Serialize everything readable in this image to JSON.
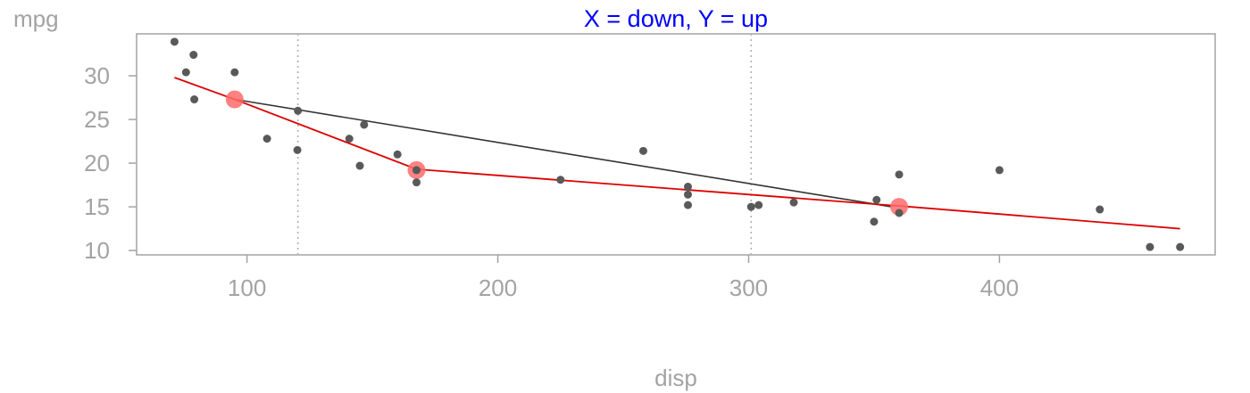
{
  "chart_data": {
    "type": "scatter",
    "title": "X = down, Y = up",
    "xlabel": "disp",
    "ylabel": "mpg",
    "xlim": [
      56,
      486
    ],
    "ylim": [
      9.5,
      34.8
    ],
    "xticks": [
      100,
      200,
      300,
      400
    ],
    "yticks": [
      10,
      15,
      20,
      25,
      30
    ],
    "grid": false,
    "vlines": [
      120.3,
      301
    ],
    "colors": {
      "points": "#595959",
      "fit_line": "#dd0000",
      "connector_line": "#333333",
      "highlight": "#ff6b6b",
      "axis": "#a3a3a3",
      "title": "#0000ff",
      "vline": "#b0b0b0"
    },
    "points": [
      {
        "x": 71.1,
        "y": 33.9
      },
      {
        "x": 75.7,
        "y": 30.4
      },
      {
        "x": 78.7,
        "y": 32.4
      },
      {
        "x": 79.0,
        "y": 27.3
      },
      {
        "x": 95.1,
        "y": 30.4
      },
      {
        "x": 108.0,
        "y": 22.8
      },
      {
        "x": 120.1,
        "y": 21.5
      },
      {
        "x": 120.3,
        "y": 26.0
      },
      {
        "x": 140.8,
        "y": 22.8
      },
      {
        "x": 145.0,
        "y": 19.7
      },
      {
        "x": 146.7,
        "y": 24.4
      },
      {
        "x": 160.0,
        "y": 21.0
      },
      {
        "x": 167.6,
        "y": 19.2
      },
      {
        "x": 167.6,
        "y": 17.8
      },
      {
        "x": 225.0,
        "y": 18.1
      },
      {
        "x": 258.0,
        "y": 21.4
      },
      {
        "x": 275.8,
        "y": 16.4
      },
      {
        "x": 275.8,
        "y": 17.3
      },
      {
        "x": 275.8,
        "y": 15.2
      },
      {
        "x": 301.0,
        "y": 15.0
      },
      {
        "x": 304.0,
        "y": 15.2
      },
      {
        "x": 318.0,
        "y": 15.5
      },
      {
        "x": 350.0,
        "y": 13.3
      },
      {
        "x": 351.0,
        "y": 15.8
      },
      {
        "x": 360.0,
        "y": 14.3
      },
      {
        "x": 360.0,
        "y": 18.7
      },
      {
        "x": 400.0,
        "y": 19.2
      },
      {
        "x": 440.0,
        "y": 14.7
      },
      {
        "x": 460.0,
        "y": 10.4
      },
      {
        "x": 472.0,
        "y": 10.4
      }
    ],
    "fit_line": [
      {
        "x": 71.1,
        "y": 29.8
      },
      {
        "x": 95.1,
        "y": 27.3
      },
      {
        "x": 167.6,
        "y": 19.3
      },
      {
        "x": 360.0,
        "y": 15.1
      },
      {
        "x": 472.0,
        "y": 12.5
      }
    ],
    "connector_line": [
      {
        "x": 95.1,
        "y": 27.3
      },
      {
        "x": 357.0,
        "y": 15.0
      }
    ],
    "highlights": [
      {
        "x": 95.1,
        "y": 27.3
      },
      {
        "x": 167.6,
        "y": 19.2
      },
      {
        "x": 360.0,
        "y": 15.0
      }
    ]
  }
}
